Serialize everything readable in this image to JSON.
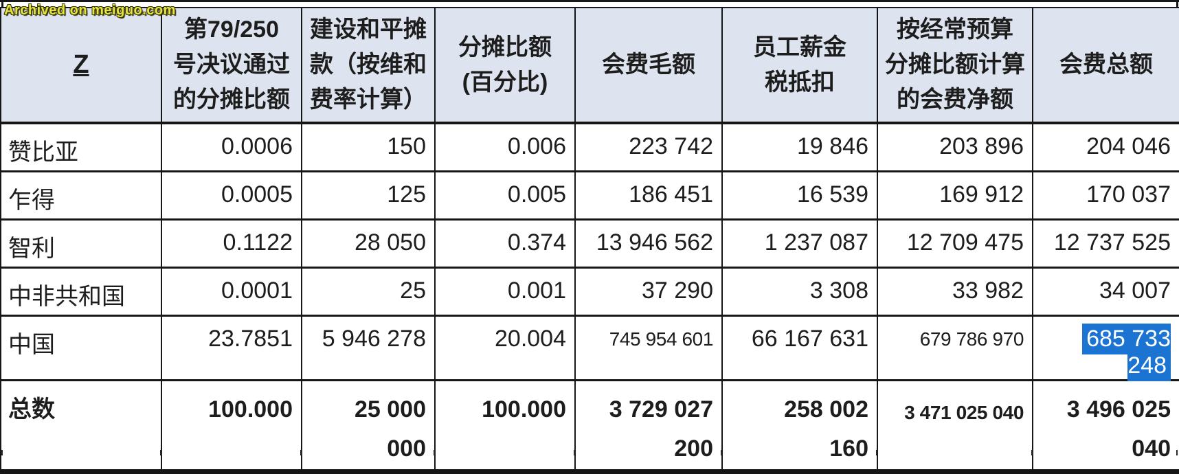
{
  "watermark": "Archived on meiguo.com",
  "colors": {
    "header_bg": "#dee4ef",
    "selection_bg": "#1b74d1",
    "selection_text": "#ffffff",
    "watermark": "#e8e542"
  },
  "table": {
    "columns": [
      {
        "label": "Z",
        "underline": true
      },
      {
        "label": "第79/250\n号决议通过\n的分摊比额"
      },
      {
        "label": "建设和平摊\n款（按维和\n费率计算）"
      },
      {
        "label": "分摊比额\n(百分比)"
      },
      {
        "label": "会费毛额"
      },
      {
        "label": "员工薪金\n税抵扣"
      },
      {
        "label": "按经常预算\n分摊比额计算\n的会费净额"
      },
      {
        "label": "会费总额"
      }
    ],
    "rows": [
      {
        "country": "赞比亚",
        "values": [
          "0.0006",
          "150",
          "0.006",
          "223 742",
          "19 846",
          "203 896",
          "204 046"
        ]
      },
      {
        "country": "乍得",
        "values": [
          "0.0005",
          "125",
          "0.005",
          "186 451",
          "16 539",
          "169 912",
          "170 037"
        ]
      },
      {
        "country": "智利",
        "values": [
          "0.1122",
          "28 050",
          "0.374",
          "13 946 562",
          "1 237 087",
          "12 709 475",
          "12 737 525"
        ]
      },
      {
        "country": "中非共和国",
        "values": [
          "0.0001",
          "25",
          "0.001",
          "37 290",
          "3 308",
          "33 982",
          "34 007"
        ]
      },
      {
        "country": "中国",
        "values": [
          "23.7851",
          "5 946 278",
          "20.004",
          {
            "text": "745 954 601",
            "small": true
          },
          "66 167 631",
          {
            "text": "679 786 970",
            "small": true
          },
          {
            "text": "685 733 248",
            "highlight": true
          }
        ]
      }
    ],
    "total_row": {
      "country": "总数",
      "values": [
        "100.000",
        "25 000\n000",
        "100.000",
        "3 729 027\n200",
        "258 002\n160",
        {
          "text": "3 471 025 040",
          "small": true
        },
        "3 496 025\n040"
      ]
    }
  }
}
